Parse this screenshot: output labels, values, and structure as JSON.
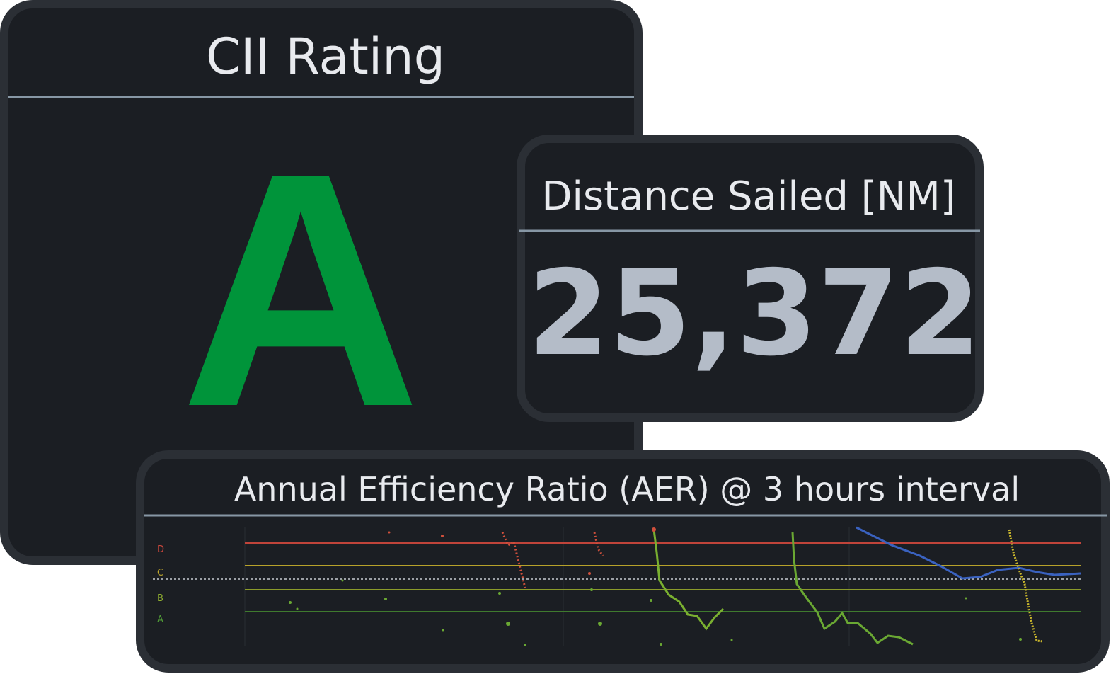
{
  "panels": [
    {
      "title": "CII Rating",
      "value": "A"
    },
    {
      "title": "Distance Sailed [NM]",
      "value": "25,372"
    },
    {
      "title": "Annual Efficiency Ratio (AER) @ 3 hours interval",
      "bands": [
        "D",
        "C",
        "B",
        "A"
      ]
    }
  ]
}
